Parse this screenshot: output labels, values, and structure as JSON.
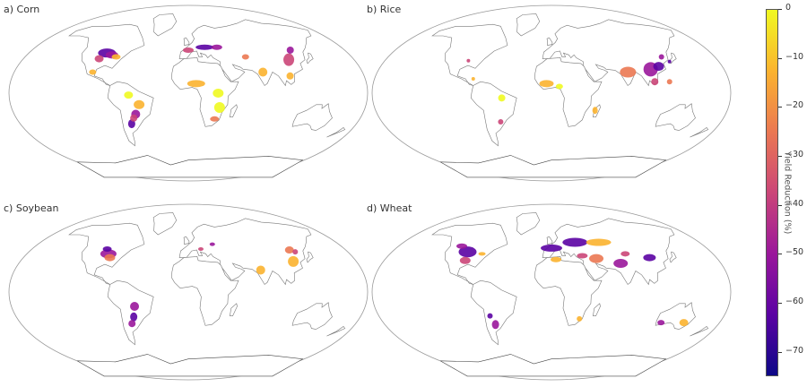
{
  "panels": [
    {
      "id": "corn",
      "title": "a) Corn"
    },
    {
      "id": "rice",
      "title": "b) Rice"
    },
    {
      "id": "soybean",
      "title": "c) Soybean"
    },
    {
      "id": "wheat",
      "title": "d) Wheat"
    }
  ],
  "colorbar": {
    "label": "Yield Reduction (%)",
    "ticks": [
      "0",
      "−10",
      "−20",
      "−30",
      "−40",
      "−50",
      "−60",
      "−70"
    ],
    "tick_values": [
      0,
      -10,
      -20,
      -30,
      -40,
      -50,
      -60,
      -70
    ],
    "min": -75,
    "max": 0,
    "colormap": "plasma",
    "colors": [
      "#0d0887",
      "#5b02a3",
      "#9a179b",
      "#cb4678",
      "#eb7852",
      "#fbb32f",
      "#f0f921"
    ]
  },
  "map_style": {
    "projection": "robinson",
    "border_color": "#bbbbbb",
    "coast_color": "#444444"
  }
}
